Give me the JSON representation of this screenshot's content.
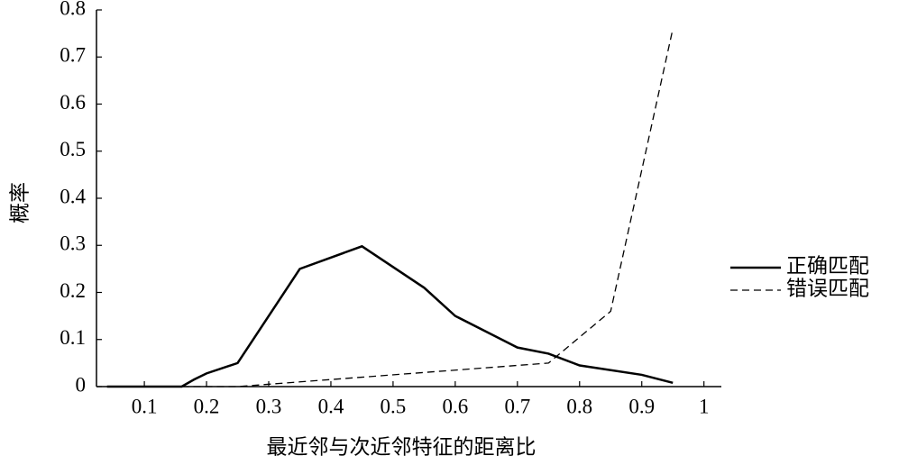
{
  "chart_data": {
    "type": "line",
    "xlabel": "最近邻与次近邻特征的距离比",
    "ylabel": "概率",
    "xlim": [
      0.023,
      1.028
    ],
    "xticks": [
      0.1,
      0.2,
      0.3,
      0.4,
      0.5,
      0.6,
      0.7,
      0.8,
      0.9,
      1
    ],
    "ylim": [
      0,
      0.8
    ],
    "yticks": [
      0,
      0.1,
      0.2,
      0.3,
      0.4,
      0.5,
      0.6,
      0.7,
      0.8
    ],
    "legend": "right",
    "series": [
      {
        "name": "正确匹配",
        "color": "#000000",
        "dash": "solid",
        "x": [
          0.04,
          0.16,
          0.18,
          0.2,
          0.25,
          0.35,
          0.45,
          0.55,
          0.6,
          0.7,
          0.75,
          0.8,
          0.9,
          0.95
        ],
        "values": [
          0,
          0,
          0.015,
          0.028,
          0.05,
          0.25,
          0.298,
          0.21,
          0.15,
          0.083,
          0.07,
          0.045,
          0.025,
          0.008
        ]
      },
      {
        "name": "错误匹配",
        "color": "#000000",
        "dash": "dashed",
        "x": [
          0.16,
          0.25,
          0.35,
          0.45,
          0.55,
          0.75,
          0.85,
          0.95
        ],
        "values": [
          0,
          0,
          0.01,
          0.02,
          0.03,
          0.05,
          0.16,
          0.76
        ]
      }
    ]
  }
}
